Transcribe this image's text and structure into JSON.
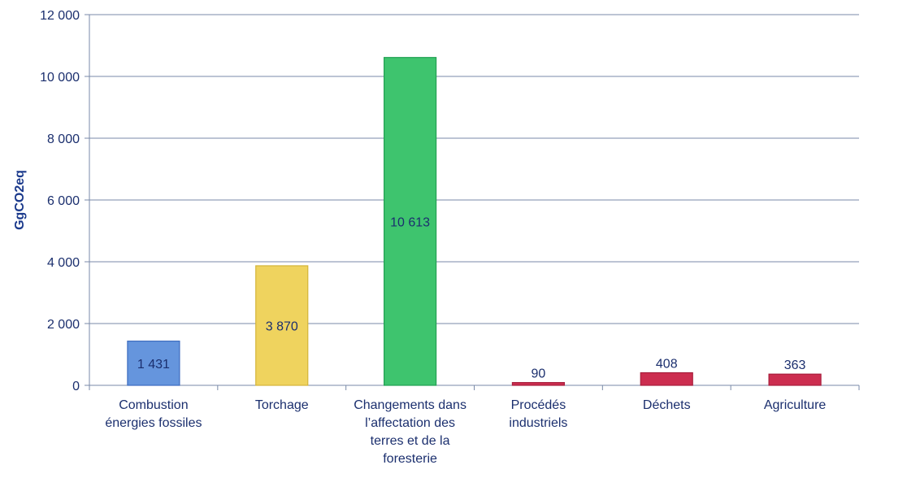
{
  "chart_data": {
    "type": "bar",
    "ylabel": "GgCO2eq",
    "xlabel": "",
    "ylim": [
      0,
      12000
    ],
    "y_ticks": [
      0,
      2000,
      4000,
      6000,
      8000,
      10000,
      12000
    ],
    "y_tick_labels": [
      "0",
      "2 000",
      "4 000",
      "6 000",
      "8 000",
      "10 000",
      "12 000"
    ],
    "grid": true,
    "categories": [
      "Combustion énergies fossiles",
      "Torchage",
      "Changements dans l’affectation des terres et de la foresterie",
      "Procédés industriels",
      "Déchets",
      "Agriculture"
    ],
    "category_lines": [
      [
        "Combustion",
        "énergies fossiles"
      ],
      [
        "Torchage"
      ],
      [
        "Changements dans",
        "l’affectation des",
        "terres et de la",
        "foresterie"
      ],
      [
        "Procédés",
        "industriels"
      ],
      [
        "Déchets"
      ],
      [
        "Agriculture"
      ]
    ],
    "values": [
      1431,
      3870,
      10613,
      90,
      408,
      363
    ],
    "data_labels": [
      "1 431",
      "3 870",
      "10 613",
      "90",
      "408",
      "363"
    ],
    "label_position": [
      "inside",
      "inside",
      "inside",
      "above",
      "above",
      "above"
    ],
    "colors": [
      "#6595dd",
      "#efd35e",
      "#3ec46e",
      "#cc2d4f",
      "#cc2d4f",
      "#cc2d4f"
    ],
    "border_colors": [
      "#3d6cc0",
      "#d4b53a",
      "#22a052",
      "#a81f3d",
      "#a81f3d",
      "#a81f3d"
    ]
  }
}
